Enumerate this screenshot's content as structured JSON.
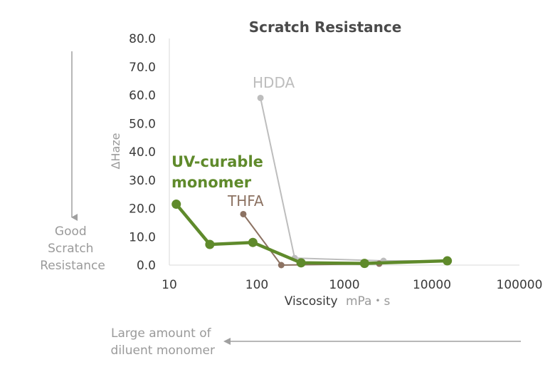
{
  "chart_data": {
    "type": "line",
    "title": "Scratch Resistance",
    "ylabel": "ΔHaze",
    "xlabel": "Viscosity",
    "xlabel_unit": "mPa・s",
    "x_scale": "log",
    "xlim": [
      10,
      100000
    ],
    "ylim": [
      0,
      80
    ],
    "x_ticks": [
      "10",
      "100",
      "1000",
      "10000",
      "100000"
    ],
    "y_ticks": [
      "0.0",
      "10.0",
      "20.0",
      "30.0",
      "40.0",
      "50.0",
      "60.0",
      "70.0",
      "80.0"
    ],
    "grid": false,
    "series": [
      {
        "name": "HDDA",
        "color": "#bdbdbd",
        "x": [
          110,
          270,
          2800,
          15000
        ],
        "y": [
          59.0,
          2.5,
          1.5,
          1.5
        ]
      },
      {
        "name": "THFA",
        "color": "#8c7262",
        "x": [
          70,
          190,
          2500,
          15000
        ],
        "y": [
          18.0,
          0.0,
          0.5,
          1.5
        ]
      },
      {
        "name": "UV-curable monomer",
        "name_lines": [
          "UV-curable",
          "monomer"
        ],
        "color": "#5f8a2b",
        "x": [
          12,
          29,
          90,
          320,
          1700,
          15000
        ],
        "y": [
          21.5,
          7.3,
          8.0,
          0.8,
          0.6,
          1.5
        ]
      }
    ],
    "annotations": {
      "good_scratch": [
        "Good",
        "Scratch",
        "Resistance"
      ],
      "diluent": [
        "Large amount of",
        "diluent monomer"
      ]
    }
  }
}
